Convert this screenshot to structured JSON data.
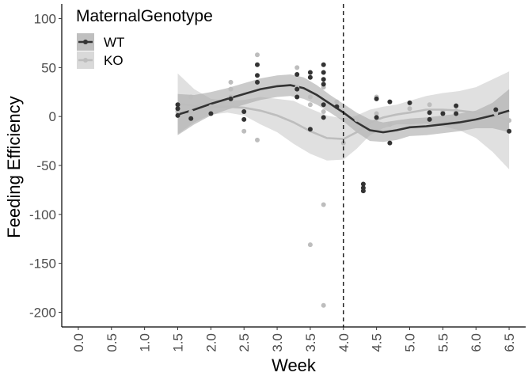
{
  "chart_data": {
    "type": "scatter",
    "title": "",
    "xlabel": "Week",
    "ylabel": "Feeding Efficiency",
    "xlim": [
      -0.25,
      6.75
    ],
    "ylim": [
      -215,
      115
    ],
    "x_ticks": [
      "0.0",
      "0.5",
      "1.0",
      "1.5",
      "2.0",
      "2.5",
      "3.0",
      "3.5",
      "4.0",
      "4.5",
      "5.0",
      "5.5",
      "6.0",
      "6.5"
    ],
    "y_ticks": [
      "100",
      "50",
      "0",
      "-50",
      "-100",
      "-150",
      "-200"
    ],
    "grid": false,
    "legend_title": "MaternalGenotype",
    "legend_position": "top-left",
    "vline_x": 4.0,
    "series": [
      {
        "name": "WT",
        "color": "#333333",
        "ribbon_color": "#a9a9a9",
        "points": [
          [
            1.5,
            12
          ],
          [
            1.5,
            8
          ],
          [
            1.5,
            1
          ],
          [
            1.7,
            -2
          ],
          [
            2.0,
            3
          ],
          [
            2.3,
            18
          ],
          [
            2.5,
            5
          ],
          [
            2.5,
            -3
          ],
          [
            2.7,
            53
          ],
          [
            2.7,
            42
          ],
          [
            2.7,
            35
          ],
          [
            3.3,
            43
          ],
          [
            3.3,
            28
          ],
          [
            3.3,
            20
          ],
          [
            3.5,
            45
          ],
          [
            3.5,
            40
          ],
          [
            3.5,
            -13
          ],
          [
            3.7,
            53
          ],
          [
            3.7,
            45
          ],
          [
            3.7,
            38
          ],
          [
            3.7,
            33
          ],
          [
            3.7,
            12
          ],
          [
            3.7,
            -1
          ],
          [
            3.9,
            10
          ],
          [
            4.3,
            -69
          ],
          [
            4.3,
            -73
          ],
          [
            4.3,
            -76
          ],
          [
            4.5,
            18
          ],
          [
            4.5,
            -1
          ],
          [
            4.7,
            15
          ],
          [
            4.7,
            -27
          ],
          [
            5.0,
            14
          ],
          [
            5.3,
            4
          ],
          [
            5.3,
            -3
          ],
          [
            5.5,
            3
          ],
          [
            5.7,
            11
          ],
          [
            5.7,
            3
          ],
          [
            6.3,
            7
          ],
          [
            6.5,
            -15
          ]
        ],
        "smooth": [
          [
            1.5,
            2
          ],
          [
            1.75,
            7
          ],
          [
            2.0,
            13
          ],
          [
            2.25,
            18
          ],
          [
            2.5,
            23
          ],
          [
            2.75,
            28
          ],
          [
            3.0,
            31
          ],
          [
            3.2,
            32
          ],
          [
            3.4,
            29
          ],
          [
            3.6,
            22
          ],
          [
            3.8,
            13
          ],
          [
            4.0,
            4
          ],
          [
            4.2,
            -6
          ],
          [
            4.4,
            -14
          ],
          [
            4.6,
            -16
          ],
          [
            4.8,
            -14
          ],
          [
            5.0,
            -11
          ],
          [
            5.25,
            -10
          ],
          [
            5.5,
            -8
          ],
          [
            5.75,
            -6
          ],
          [
            6.0,
            -3
          ],
          [
            6.25,
            1
          ],
          [
            6.5,
            6
          ]
        ],
        "band": [
          [
            1.5,
            -19,
            23
          ],
          [
            1.75,
            -8,
            22
          ],
          [
            2.0,
            1,
            25
          ],
          [
            2.25,
            7,
            29
          ],
          [
            2.5,
            12,
            34
          ],
          [
            2.75,
            17,
            39
          ],
          [
            3.0,
            20,
            42
          ],
          [
            3.2,
            21,
            43
          ],
          [
            3.4,
            18,
            40
          ],
          [
            3.6,
            12,
            32
          ],
          [
            3.8,
            4,
            22
          ],
          [
            4.0,
            -5,
            13
          ],
          [
            4.2,
            -16,
            4
          ],
          [
            4.4,
            -25,
            -3
          ],
          [
            4.6,
            -26,
            -6
          ],
          [
            4.8,
            -24,
            -4
          ],
          [
            5.0,
            -20,
            -2
          ],
          [
            5.25,
            -19,
            -1
          ],
          [
            5.5,
            -17,
            1
          ],
          [
            5.75,
            -15,
            3
          ],
          [
            6.0,
            -12,
            6
          ],
          [
            6.25,
            -12,
            14
          ],
          [
            6.5,
            -16,
            28
          ]
        ]
      },
      {
        "name": "KO",
        "color": "#bdbdbd",
        "ribbon_color": "#cccccc",
        "points": [
          [
            1.5,
            5
          ],
          [
            1.7,
            20
          ],
          [
            1.7,
            5
          ],
          [
            2.0,
            10
          ],
          [
            2.3,
            35
          ],
          [
            2.3,
            28
          ],
          [
            2.3,
            20
          ],
          [
            2.5,
            -15
          ],
          [
            2.7,
            63
          ],
          [
            2.7,
            -24
          ],
          [
            3.3,
            50
          ],
          [
            3.3,
            30
          ],
          [
            3.5,
            20
          ],
          [
            3.5,
            12
          ],
          [
            3.5,
            -131
          ],
          [
            3.7,
            -90
          ],
          [
            3.7,
            -193
          ],
          [
            3.7,
            30
          ],
          [
            3.7,
            5
          ],
          [
            3.9,
            15
          ],
          [
            4.0,
            -27
          ],
          [
            4.2,
            -3
          ],
          [
            4.5,
            20
          ],
          [
            4.5,
            3
          ],
          [
            4.7,
            -8
          ],
          [
            5.0,
            8
          ],
          [
            5.3,
            12
          ],
          [
            5.5,
            5
          ],
          [
            5.7,
            6
          ],
          [
            6.3,
            3
          ],
          [
            6.5,
            -4
          ]
        ],
        "smooth": [
          [
            1.5,
            13
          ],
          [
            1.75,
            11
          ],
          [
            2.0,
            10
          ],
          [
            2.25,
            10
          ],
          [
            2.5,
            9
          ],
          [
            2.75,
            6
          ],
          [
            3.0,
            1
          ],
          [
            3.25,
            -6
          ],
          [
            3.5,
            -15
          ],
          [
            3.75,
            -22
          ],
          [
            4.0,
            -23
          ],
          [
            4.2,
            -16
          ],
          [
            4.4,
            -6
          ],
          [
            4.6,
            -1
          ],
          [
            4.8,
            2
          ],
          [
            5.0,
            4
          ],
          [
            5.25,
            7
          ],
          [
            5.5,
            7
          ],
          [
            5.75,
            6
          ],
          [
            6.0,
            4
          ],
          [
            6.25,
            1
          ],
          [
            6.5,
            -4
          ]
        ],
        "band": [
          [
            1.5,
            -18,
            44
          ],
          [
            1.75,
            -6,
            28
          ],
          [
            2.0,
            2,
            18
          ],
          [
            2.25,
            4,
            16
          ],
          [
            2.5,
            1,
            17
          ],
          [
            2.75,
            -8,
            20
          ],
          [
            3.0,
            -16,
            18
          ],
          [
            3.25,
            -28,
            16
          ],
          [
            3.5,
            -38,
            8
          ],
          [
            3.75,
            -45,
            1
          ],
          [
            4.0,
            -44,
            -2
          ],
          [
            4.2,
            -33,
            1
          ],
          [
            4.4,
            -19,
            7
          ],
          [
            4.6,
            -12,
            10
          ],
          [
            4.8,
            -8,
            12
          ],
          [
            5.0,
            -8,
            16
          ],
          [
            5.25,
            -7,
            21
          ],
          [
            5.5,
            -10,
            24
          ],
          [
            5.75,
            -14,
            26
          ],
          [
            6.0,
            -22,
            30
          ],
          [
            6.25,
            -36,
            38
          ],
          [
            6.5,
            -54,
            46
          ]
        ]
      }
    ]
  }
}
